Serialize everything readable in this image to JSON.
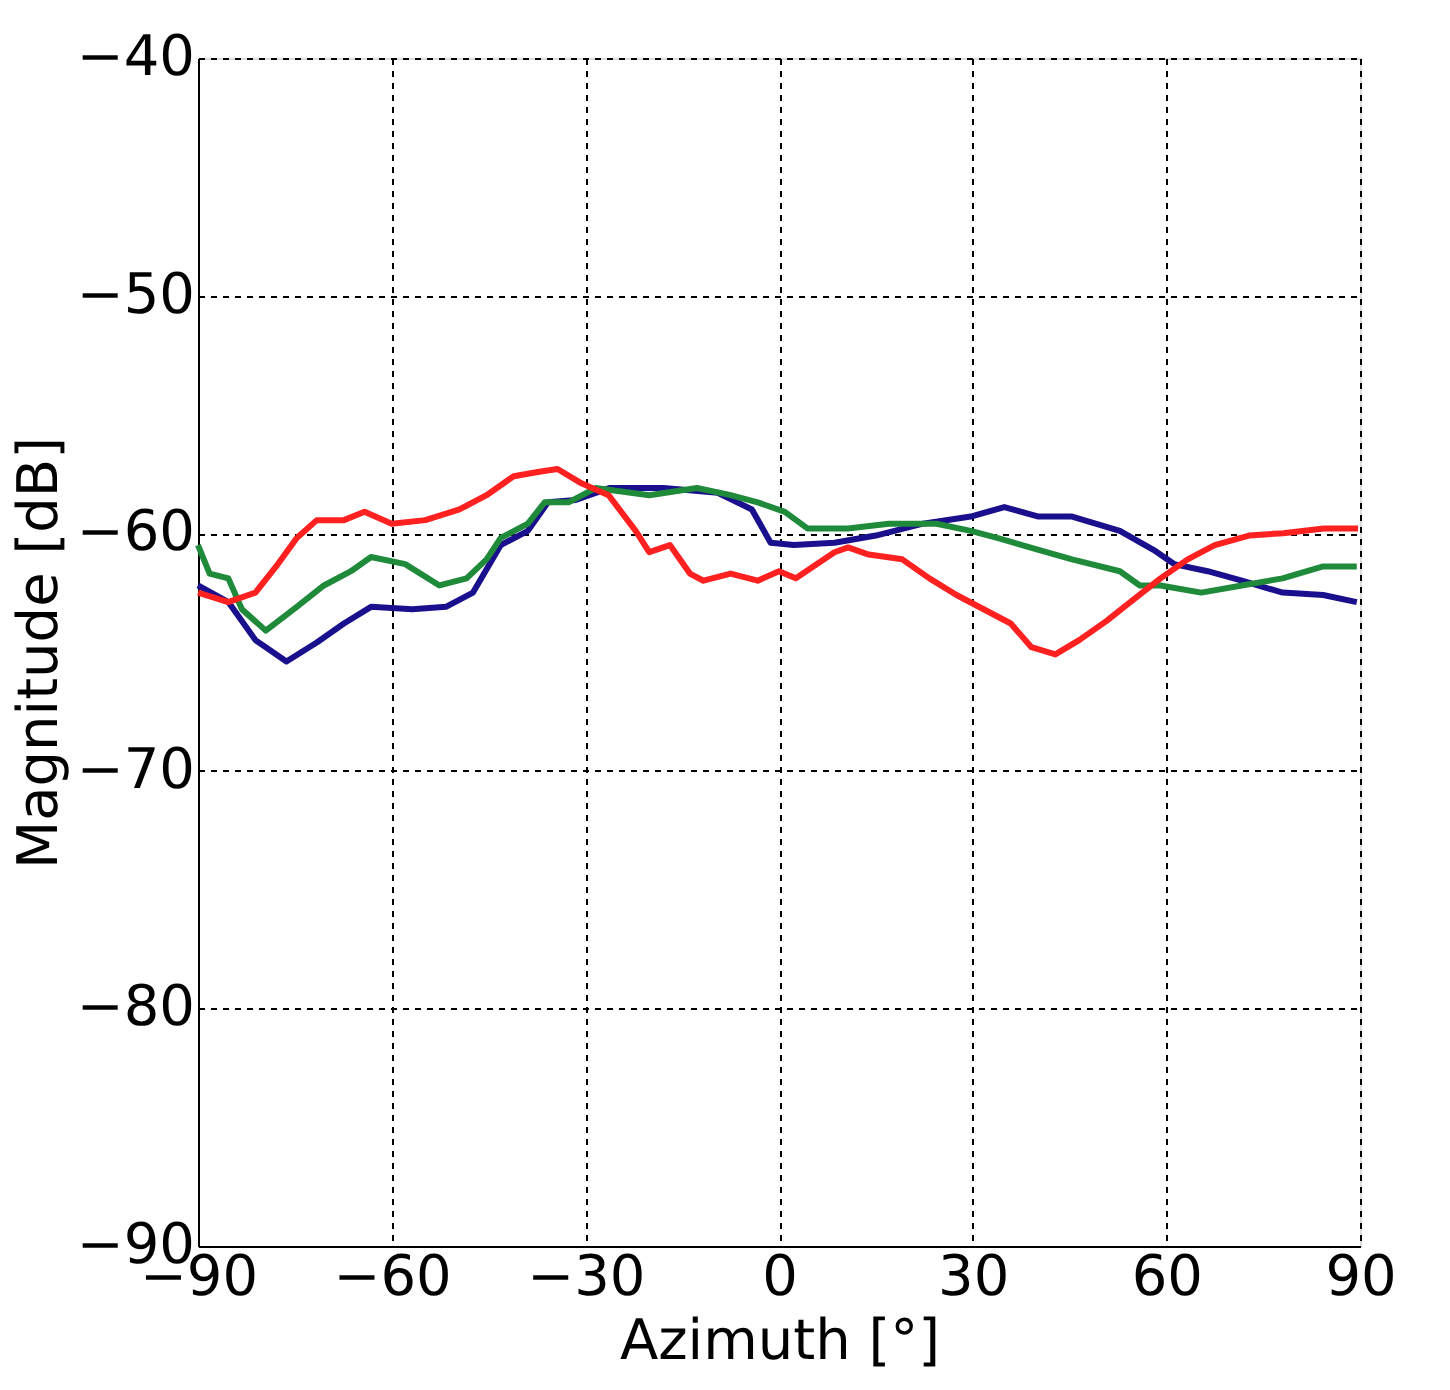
{
  "chart_data": {
    "type": "line",
    "xlabel": "Azimuth [°]",
    "ylabel": "Magnitude [dB]",
    "xlim": [
      -90,
      90
    ],
    "xticks": [
      -90,
      -60,
      -30,
      0,
      30,
      60,
      90
    ],
    "ylim": [
      -90,
      -40
    ],
    "yticks": [
      -90,
      -80,
      -70,
      -60,
      -50,
      -40
    ],
    "grid": true,
    "line_style": "solid",
    "series": [
      {
        "color": "#1a0f8c",
        "x": [
          -90,
          -85.3,
          -81.1,
          -76.3,
          -71.6,
          -67.4,
          -63.2,
          -56.8,
          -51.6,
          -47.4,
          -43.1,
          -38.9,
          -35.8,
          -31.5,
          -26.3,
          -17.9,
          -9.5,
          -4.2,
          -1.3,
          2.3,
          8.6,
          15,
          22.3,
          29.7,
          34.9,
          40.2,
          45.4,
          52.8,
          58,
          61.2,
          66.4,
          71.7,
          78,
          84.3,
          89.5
        ],
        "values": [
          -62.2,
          -62.9,
          -64.5,
          -65.4,
          -64.6,
          -63.8,
          -63.1,
          -63.2,
          -63.1,
          -62.5,
          -60.5,
          -59.9,
          -58.7,
          -58.6,
          -58.1,
          -58.1,
          -58.3,
          -59.0,
          -60.4,
          -60.5,
          -60.4,
          -60.1,
          -59.6,
          -59.3,
          -58.9,
          -59.3,
          -59.3,
          -59.9,
          -60.7,
          -61.3,
          -61.6,
          -62.0,
          -62.5,
          -62.6,
          -62.9
        ]
      },
      {
        "color": "#1f8a3a",
        "x": [
          -90,
          -88.2,
          -85.3,
          -83.2,
          -79.5,
          -74.7,
          -70.5,
          -66.3,
          -63.2,
          -57.9,
          -52.6,
          -48.4,
          -45.3,
          -43.1,
          -38.9,
          -36.3,
          -32.6,
          -28.4,
          -20.1,
          -12.7,
          -7.5,
          -3.3,
          0.9,
          4.4,
          10.7,
          17,
          24.4,
          29.7,
          33.8,
          40.2,
          45.4,
          52.8,
          55.9,
          59.1,
          65.4,
          71.7,
          78,
          84.3,
          89.5
        ],
        "values": [
          -60.5,
          -61.7,
          -61.9,
          -63.2,
          -64.1,
          -63.1,
          -62.2,
          -61.6,
          -61.0,
          -61.3,
          -62.2,
          -61.9,
          -61.1,
          -60.2,
          -59.6,
          -58.7,
          -58.7,
          -58.1,
          -58.4,
          -58.1,
          -58.4,
          -58.7,
          -59.1,
          -59.8,
          -59.8,
          -59.6,
          -59.6,
          -59.9,
          -60.2,
          -60.7,
          -61.1,
          -61.6,
          -62.2,
          -62.2,
          -62.5,
          -62.2,
          -61.9,
          -61.4,
          -61.4
        ]
      },
      {
        "color": "#ff2020",
        "x": [
          -90,
          -85.3,
          -81.1,
          -77.9,
          -74.7,
          -71.6,
          -67.4,
          -64.2,
          -60,
          -54.8,
          -49.5,
          -45.3,
          -41.1,
          -36.9,
          -34.3,
          -30.6,
          -26.4,
          -22.2,
          -20.1,
          -16.9,
          -13.8,
          -11.7,
          -7.5,
          -3.3,
          0,
          2.6,
          8.6,
          10.7,
          13.9,
          19.1,
          23.3,
          27.5,
          31.7,
          35.9,
          39.1,
          42.8,
          46.5,
          50.7,
          54.9,
          59.1,
          63.3,
          67.5,
          72.8,
          78.1,
          84.4,
          89.7
        ],
        "values": [
          -62.5,
          -62.9,
          -62.5,
          -61.4,
          -60.2,
          -59.45,
          -59.45,
          -59.1,
          -59.6,
          -59.45,
          -59.0,
          -58.4,
          -57.6,
          -57.4,
          -57.3,
          -57.9,
          -58.4,
          -59.9,
          -60.8,
          -60.5,
          -61.7,
          -62.0,
          -61.7,
          -62.0,
          -61.6,
          -61.9,
          -60.8,
          -60.6,
          -60.9,
          -61.1,
          -61.9,
          -62.6,
          -63.2,
          -63.8,
          -64.8,
          -65.1,
          -64.5,
          -63.7,
          -62.8,
          -61.9,
          -61.1,
          -60.5,
          -60.1,
          -60.0,
          -59.8,
          -59.8
        ]
      }
    ]
  }
}
